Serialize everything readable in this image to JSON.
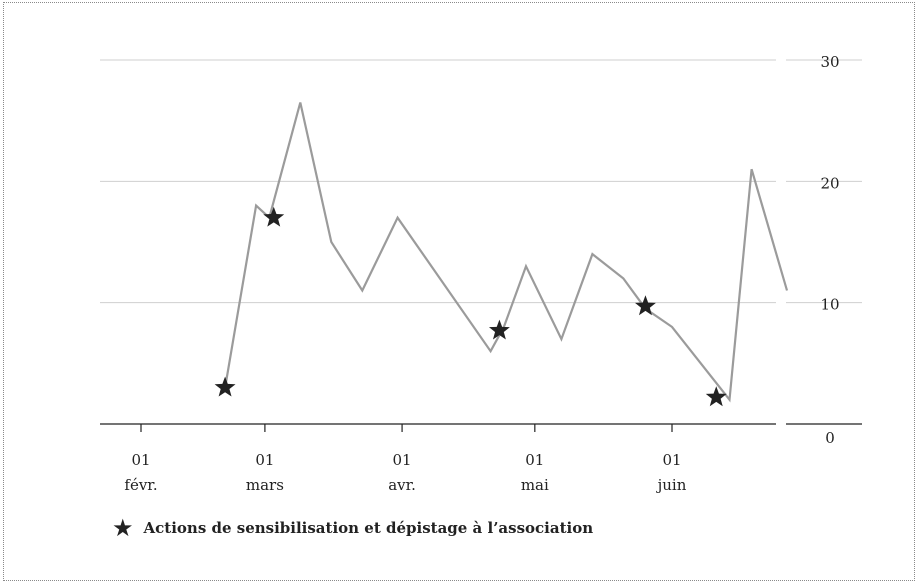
{
  "chart_data": {
    "type": "line",
    "ylim": [
      0,
      30
    ],
    "y_ticks": [
      "0",
      "10",
      "20",
      "30"
    ],
    "y_axis_side": "right",
    "grid": true,
    "x_ticks": [
      {
        "date": "2021-02-01",
        "day": "01",
        "month": "févr."
      },
      {
        "date": "2021-03-01",
        "day": "01",
        "month": "mars"
      },
      {
        "date": "2021-04-01",
        "day": "01",
        "month": "avr."
      },
      {
        "date": "2021-05-01",
        "day": "01",
        "month": "mai"
      },
      {
        "date": "2021-06-01",
        "day": "01",
        "month": "juin"
      }
    ],
    "xlim": [
      "2021-01-26",
      "2021-06-27"
    ],
    "series": [
      {
        "color": "#9b9b9b",
        "points": [
          {
            "date": "2021-02-20",
            "y": 3
          },
          {
            "date": "2021-02-27",
            "y": 18
          },
          {
            "date": "2021-03-02",
            "y": 17
          },
          {
            "date": "2021-03-09",
            "y": 26.5
          },
          {
            "date": "2021-03-16",
            "y": 15
          },
          {
            "date": "2021-03-23",
            "y": 11
          },
          {
            "date": "2021-03-31",
            "y": 17
          },
          {
            "date": "2021-04-21",
            "y": 6
          },
          {
            "date": "2021-04-24",
            "y": 8
          },
          {
            "date": "2021-04-29",
            "y": 13
          },
          {
            "date": "2021-05-07",
            "y": 7
          },
          {
            "date": "2021-05-14",
            "y": 14
          },
          {
            "date": "2021-05-21",
            "y": 12
          },
          {
            "date": "2021-05-26",
            "y": 9.5
          },
          {
            "date": "2021-06-01",
            "y": 8
          },
          {
            "date": "2021-06-14",
            "y": 2
          },
          {
            "date": "2021-06-19",
            "y": 21
          },
          {
            "date": "2021-06-27",
            "y": 11
          }
        ]
      }
    ],
    "markers": [
      {
        "date": "2021-02-20",
        "y": 3
      },
      {
        "date": "2021-03-03",
        "y": 17
      },
      {
        "date": "2021-04-23",
        "y": 7.7
      },
      {
        "date": "2021-05-26",
        "y": 9.7
      },
      {
        "date": "2021-06-11",
        "y": 2.2
      }
    ],
    "legend": {
      "position": "bottom-left",
      "symbol": "★",
      "label": "Actions de sensibilisation et dépistage à l’association"
    },
    "title": "",
    "xlabel": "",
    "ylabel": ""
  }
}
